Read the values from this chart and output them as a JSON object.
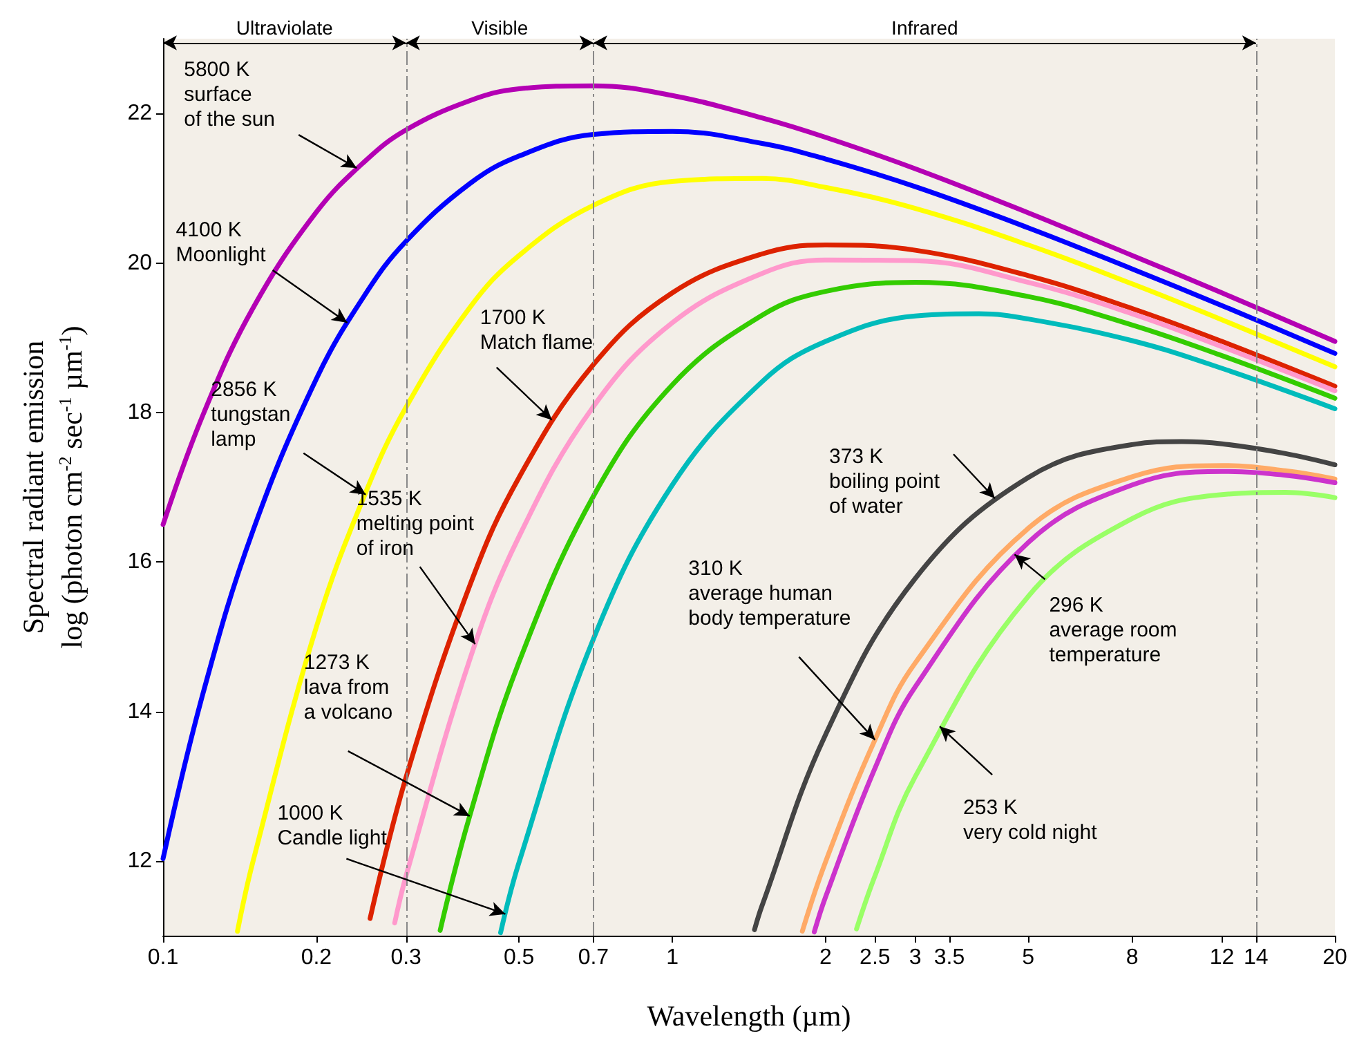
{
  "chart_data": {
    "type": "line",
    "xlabel": "Wavelength (µm)",
    "ylabel": "Spectral radiant emission\nlog (photon cm$^{-2}$ sec$^{-1}$ µm$^{-1}$)",
    "log": "x",
    "xlim": [
      0.1,
      20
    ],
    "xticks": [
      0.1,
      0.2,
      0.3,
      0.5,
      0.7,
      1,
      2,
      2.5,
      3,
      3.5,
      5,
      8,
      12,
      14,
      20
    ],
    "ylim": [
      11,
      23
    ],
    "yticks": [
      12,
      14,
      16,
      18,
      20,
      22
    ],
    "grid": false,
    "marker": "none",
    "line_style": "solid",
    "series": [
      {
        "color": "#b400b4",
        "x": [
          0.1,
          0.12,
          0.15,
          0.2,
          0.25,
          0.3,
          0.4,
          0.5,
          0.7,
          1,
          1.5,
          2,
          3,
          5,
          8,
          12,
          20
        ],
        "values": [
          16.5,
          17.98,
          19.39,
          20.68,
          21.37,
          21.78,
          22.17,
          22.33,
          22.37,
          22.24,
          21.94,
          21.68,
          21.26,
          20.67,
          20.1,
          19.6,
          18.95
        ]
      },
      {
        "color": "#0000ff",
        "x": [
          0.1,
          0.12,
          0.15,
          0.2,
          0.25,
          0.3,
          0.4,
          0.5,
          0.7,
          1,
          1.5,
          2,
          3,
          5,
          8,
          12,
          20
        ],
        "values": [
          12.03,
          14.26,
          16.41,
          18.45,
          19.59,
          20.29,
          21.06,
          21.43,
          21.72,
          21.76,
          21.6,
          21.39,
          21.02,
          20.47,
          19.92,
          19.43,
          18.79
        ]
      },
      {
        "color": "#ffff00",
        "x": [
          0.14,
          0.15,
          0.2,
          0.25,
          0.3,
          0.4,
          0.5,
          0.7,
          1,
          1.5,
          2,
          3,
          5,
          8,
          12,
          20
        ],
        "values": [
          11.06,
          11.98,
          15.13,
          16.93,
          18.07,
          19.4,
          20.1,
          20.77,
          21.09,
          21.13,
          21.01,
          20.73,
          20.24,
          19.72,
          19.24,
          18.61
        ]
      },
      {
        "color": "#dd2200",
        "x": [
          0.255,
          0.3,
          0.4,
          0.5,
          0.7,
          1,
          1.5,
          2,
          3,
          5,
          8,
          12,
          20
        ],
        "values": [
          11.23,
          13.12,
          15.68,
          17.13,
          18.64,
          19.6,
          20.12,
          20.24,
          20.17,
          19.83,
          19.39,
          18.95,
          18.35
        ]
      },
      {
        "color": "#ff99cc",
        "x": [
          0.285,
          0.3,
          0.4,
          0.5,
          0.7,
          1,
          1.5,
          2,
          3,
          5,
          8,
          12,
          20
        ],
        "values": [
          11.17,
          11.8,
          14.69,
          16.34,
          18.08,
          19.2,
          19.86,
          20.04,
          20.03,
          19.74,
          19.32,
          18.88,
          18.29
        ]
      },
      {
        "color": "#33cc00",
        "x": [
          0.35,
          0.4,
          0.5,
          0.7,
          1,
          1.5,
          2,
          3,
          5,
          8,
          12,
          20
        ],
        "values": [
          11.07,
          12.6,
          14.66,
          16.88,
          18.37,
          19.3,
          19.62,
          19.74,
          19.55,
          19.17,
          18.76,
          18.19
        ]
      },
      {
        "color": "#00bbbb",
        "x": [
          0.46,
          0.5,
          0.7,
          1,
          1.5,
          2,
          3,
          4,
          5,
          8,
          12,
          20
        ],
        "values": [
          11.04,
          11.98,
          14.97,
          17.03,
          18.41,
          18.95,
          19.29,
          19.32,
          19.25,
          18.96,
          18.59,
          18.05
        ]
      },
      {
        "color": "#444444",
        "x": [
          1.45,
          1.5,
          2,
          3,
          5,
          8,
          10,
          12,
          16,
          20
        ],
        "values": [
          11.08,
          11.4,
          13.69,
          15.78,
          17.13,
          17.57,
          17.61,
          17.58,
          17.45,
          17.3
        ]
      },
      {
        "color": "#ffaa66",
        "x": [
          1.8,
          2,
          2.5,
          3,
          5,
          8,
          12,
          16,
          20
        ],
        "values": [
          11.06,
          11.99,
          13.62,
          14.65,
          16.45,
          17.14,
          17.29,
          17.22,
          17.11
        ]
      },
      {
        "color": "#cc33cc",
        "x": [
          1.9,
          2,
          2.5,
          3,
          5,
          8,
          12,
          16,
          20
        ],
        "values": [
          11.05,
          11.52,
          13.24,
          14.33,
          16.26,
          17.03,
          17.21,
          17.16,
          17.06
        ]
      },
      {
        "color": "#99ff66",
        "x": [
          2.3,
          2.5,
          3,
          5,
          8,
          12,
          16,
          20
        ],
        "values": [
          11.09,
          11.8,
          13.13,
          15.54,
          16.58,
          16.9,
          16.93,
          16.86
        ]
      }
    ],
    "ref_lines": [
      {
        "axis": "x",
        "value": 0.3,
        "line_style": "dashed",
        "color": "#888888"
      },
      {
        "axis": "x",
        "value": 0.7,
        "line_style": "dashed",
        "color": "#888888"
      },
      {
        "axis": "x",
        "value": 14,
        "line_style": "dashed",
        "color": "#888888"
      }
    ],
    "annotations": [
      "Ultraviolate",
      "Visible",
      "Infrared",
      {
        "text": "5800 K\nsurface\nof the sun",
        "x": 0.24,
        "y": 21.27
      },
      {
        "text": "4100 K\nMoonlight",
        "x": 0.23,
        "y": 19.2
      },
      {
        "text": "2856 K\ntungstan\nlamp",
        "x": 0.25,
        "y": 16.9
      },
      {
        "text": "1700 K\nMatch flame",
        "x": 0.58,
        "y": 17.9
      },
      {
        "text": "1535 K\nmelting point\nof iron",
        "x": 0.41,
        "y": 14.9
      },
      {
        "text": "1273 K\nlava from\na volcano",
        "x": 0.4,
        "y": 12.6
      },
      {
        "text": "1000 K\nCandle light",
        "x": 0.47,
        "y": 11.29
      },
      {
        "text": "373 K\nboiling point\nof water",
        "x": 4.3,
        "y": 16.85
      },
      {
        "text": "310 K\naverage human\nbody temperature",
        "x": 2.5,
        "y": 13.62
      },
      {
        "text": "296 K\naverage room\ntemperature",
        "x": 4.7,
        "y": 16.1
      },
      {
        "text": "253 K\nvery cold night",
        "x": 3.35,
        "y": 13.8
      }
    ]
  }
}
